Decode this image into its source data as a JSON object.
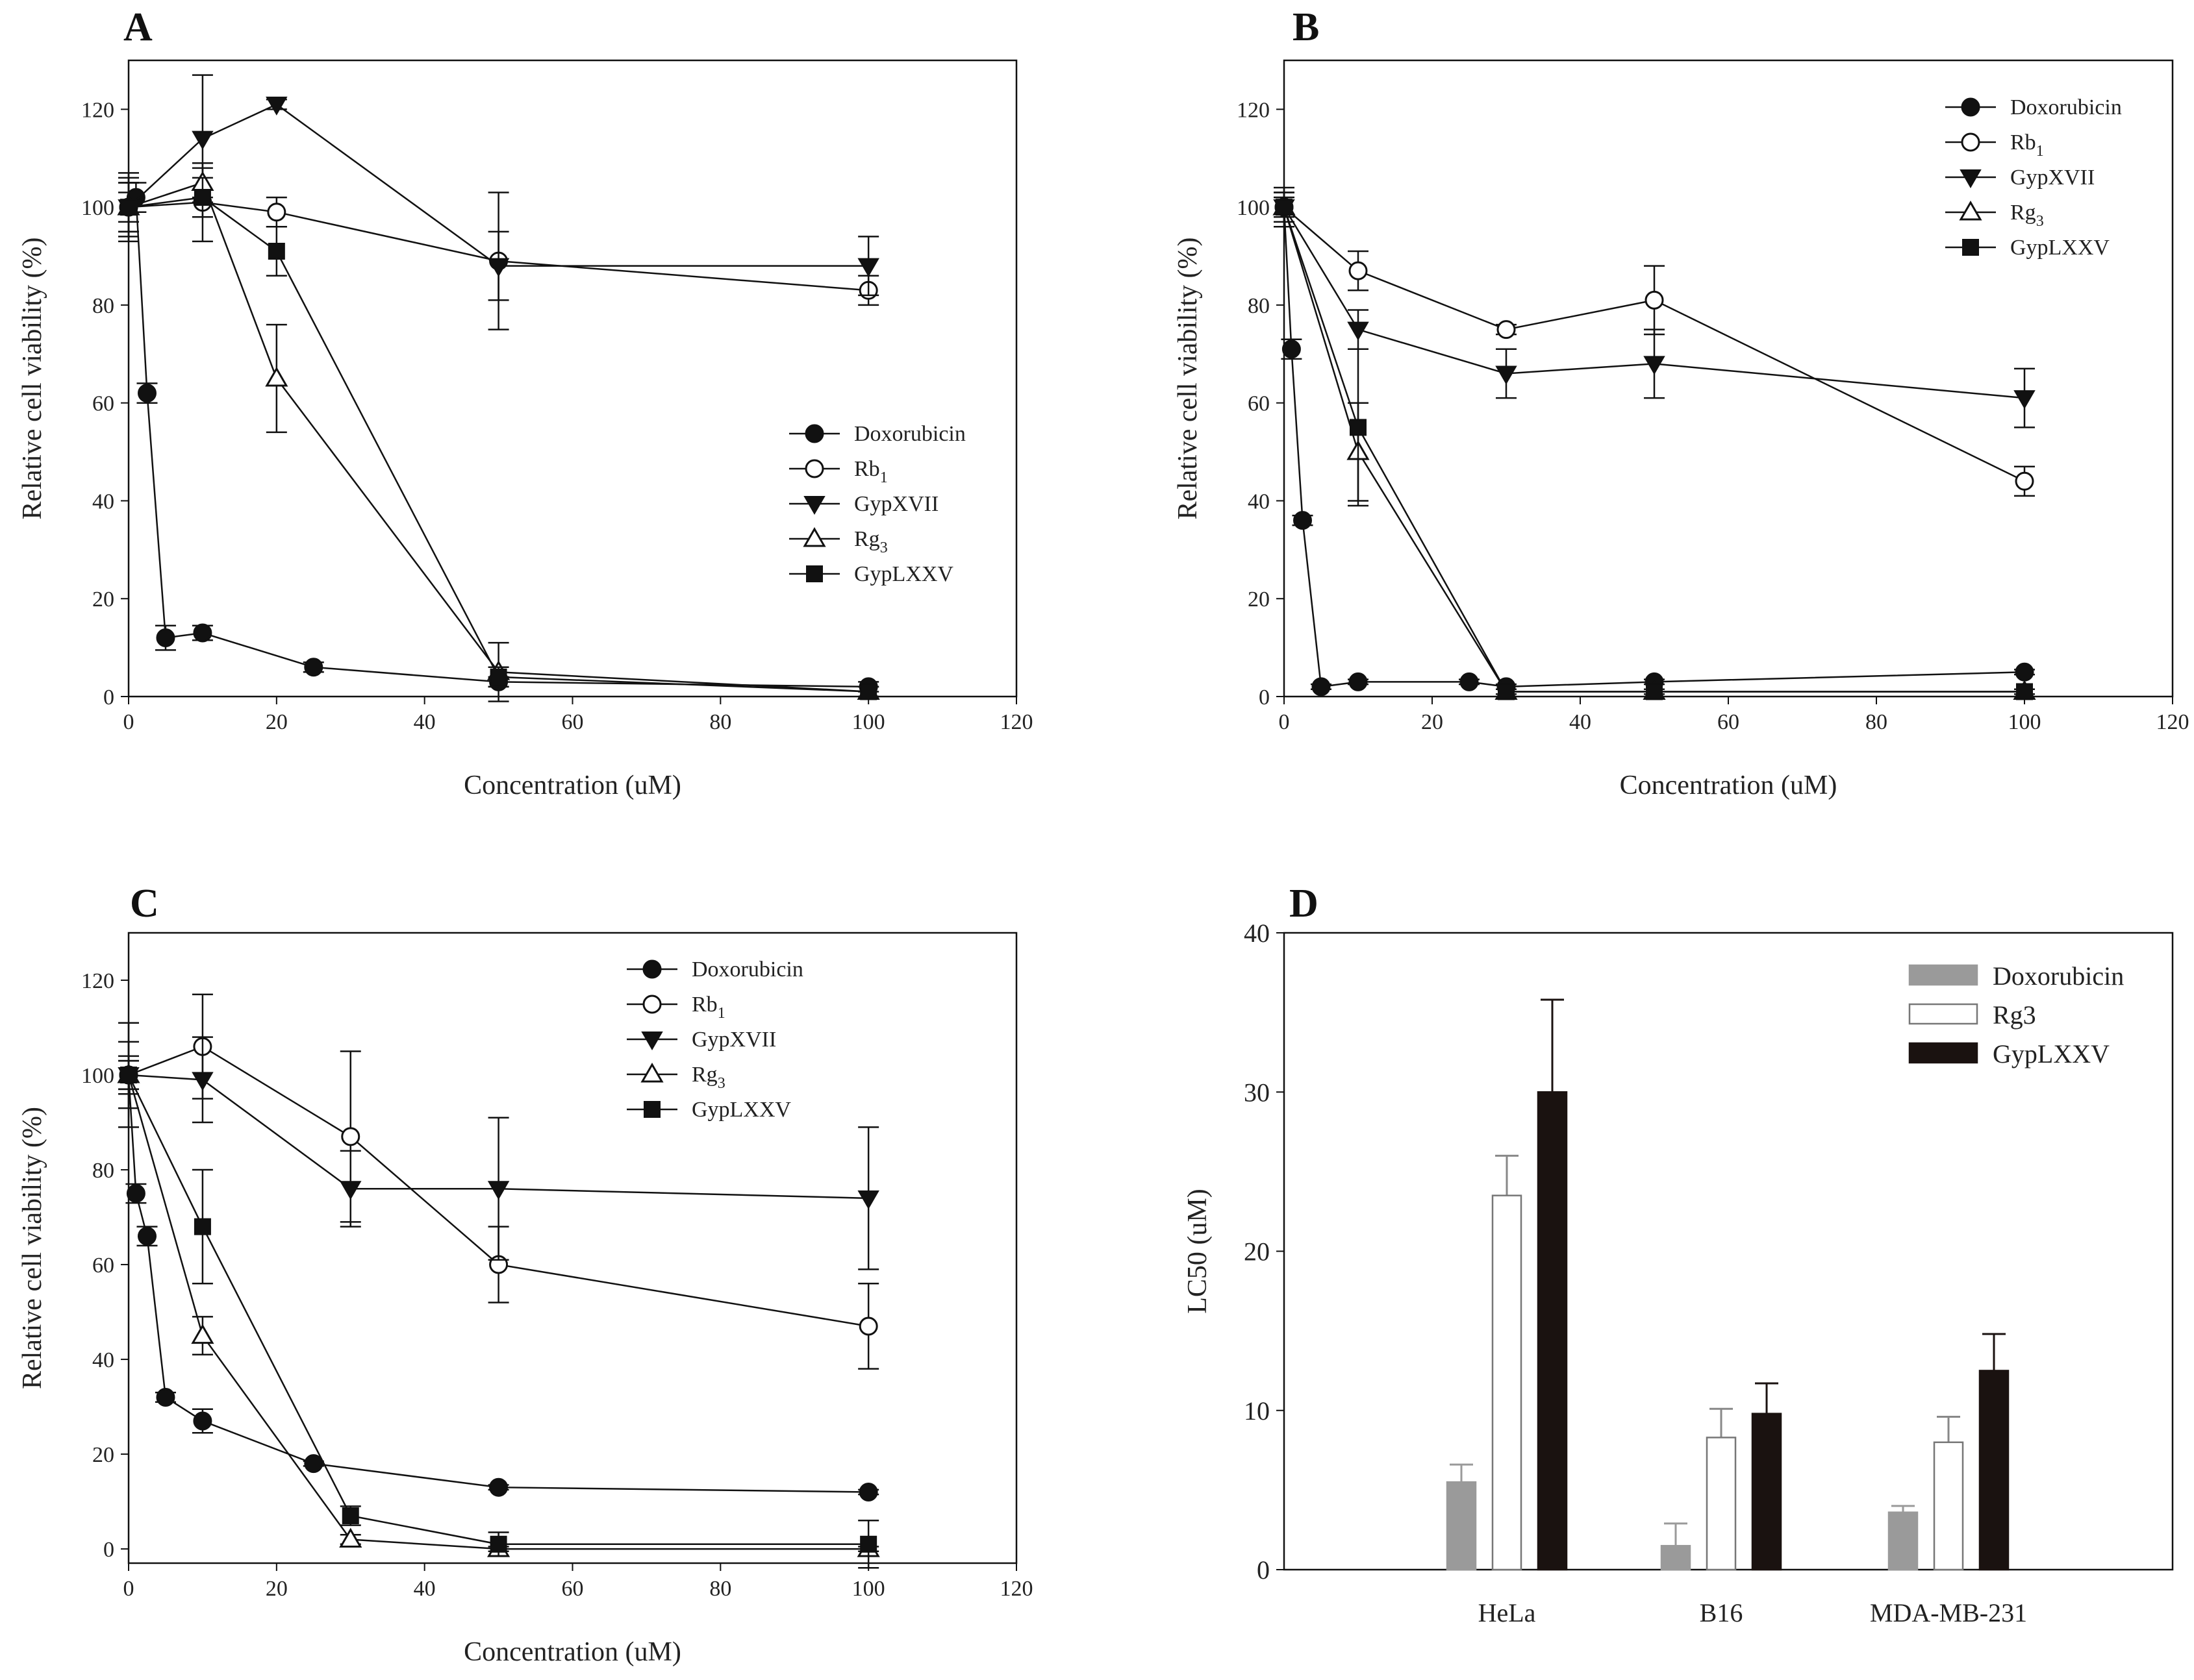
{
  "chart_data": [
    {
      "panel": "A",
      "type": "line",
      "xlabel": "Concentration (uM)",
      "ylabel": "Relative cell viability (%)",
      "xlim": [
        0,
        120
      ],
      "ylim": [
        0,
        130
      ],
      "xticks": [
        0,
        20,
        40,
        60,
        80,
        100,
        120
      ],
      "yticks": [
        0,
        20,
        40,
        60,
        80,
        100,
        120
      ],
      "legend_position": "middle-right",
      "series": [
        {
          "name": "Doxorubicin",
          "label_main": "Doxorubicin",
          "label_sub": "",
          "marker": "circle-filled",
          "x": [
            0,
            1,
            2.5,
            5,
            10,
            25,
            50,
            100
          ],
          "y": [
            100,
            102,
            62,
            12,
            13,
            6,
            3,
            2
          ],
          "err": [
            3,
            3,
            2,
            2.5,
            1.5,
            1,
            1,
            1
          ]
        },
        {
          "name": "Rb1",
          "label_main": "Rb",
          "label_sub": "1",
          "marker": "circle-open",
          "x": [
            0,
            10,
            20,
            50,
            100
          ],
          "y": [
            100,
            101,
            99,
            89,
            83
          ],
          "err": [
            6,
            8,
            3,
            14,
            3
          ]
        },
        {
          "name": "GypXVII",
          "label_main": "GypXVII",
          "label_sub": "",
          "marker": "triangle-down-filled",
          "x": [
            0,
            10,
            20,
            50,
            100
          ],
          "y": [
            100,
            114,
            121,
            88,
            88
          ],
          "err": [
            7,
            13,
            1,
            7,
            6
          ]
        },
        {
          "name": "Rg3",
          "label_main": "Rg",
          "label_sub": "3",
          "marker": "triangle-up-open",
          "x": [
            0,
            10,
            20,
            50,
            100
          ],
          "y": [
            100,
            105,
            65,
            5,
            1
          ],
          "err": [
            5,
            3,
            11,
            6,
            1
          ]
        },
        {
          "name": "GypLXXV",
          "label_main": "GypLXXV",
          "label_sub": "",
          "marker": "square-filled",
          "x": [
            0,
            10,
            20,
            50,
            100
          ],
          "y": [
            100,
            102,
            91,
            4,
            1
          ],
          "err": [
            5,
            4,
            5,
            2,
            1
          ]
        }
      ]
    },
    {
      "panel": "B",
      "type": "line",
      "xlabel": "Concentration (uM)",
      "ylabel": "Relative cell viability (%)",
      "xlim": [
        0,
        120
      ],
      "ylim": [
        0,
        130
      ],
      "xticks": [
        0,
        20,
        40,
        60,
        80,
        100,
        120
      ],
      "yticks": [
        0,
        20,
        40,
        60,
        80,
        100,
        120
      ],
      "legend_position": "top-right",
      "series": [
        {
          "name": "Doxorubicin",
          "label_main": "Doxorubicin",
          "label_sub": "",
          "marker": "circle-filled",
          "x": [
            0,
            1,
            2.5,
            5,
            10,
            25,
            30,
            50,
            100
          ],
          "y": [
            100,
            71,
            36,
            2,
            3,
            3,
            2,
            3,
            5
          ],
          "err": [
            2,
            2,
            1,
            0.5,
            0.5,
            0.5,
            0.5,
            0.5,
            0.5
          ]
        },
        {
          "name": "Rb1",
          "label_main": "Rb",
          "label_sub": "1",
          "marker": "circle-open",
          "x": [
            0,
            10,
            30,
            50,
            100
          ],
          "y": [
            100,
            87,
            75,
            81,
            44
          ],
          "err": [
            4,
            4,
            1,
            7,
            3
          ]
        },
        {
          "name": "GypXVII",
          "label_main": "GypXVII",
          "label_sub": "",
          "marker": "triangle-down-filled",
          "x": [
            0,
            10,
            30,
            50,
            100
          ],
          "y": [
            100,
            75,
            66,
            68,
            61
          ],
          "err": [
            3,
            4,
            5,
            7,
            6
          ]
        },
        {
          "name": "Rg3",
          "label_main": "Rg",
          "label_sub": "3",
          "marker": "triangle-up-open",
          "x": [
            0,
            10,
            30,
            50,
            100
          ],
          "y": [
            100,
            50,
            1,
            1,
            1
          ],
          "err": [
            2,
            10,
            0.5,
            0.5,
            0.5
          ]
        },
        {
          "name": "GypLXXV",
          "label_main": "GypLXXV",
          "label_sub": "",
          "marker": "square-filled",
          "x": [
            0,
            10,
            30,
            50,
            100
          ],
          "y": [
            100,
            55,
            1,
            1,
            1
          ],
          "err": [
            3,
            16,
            0.5,
            0.5,
            0.5
          ]
        }
      ]
    },
    {
      "panel": "C",
      "type": "line",
      "xlabel": "Concentration (uM)",
      "ylabel": "Relative cell viability (%)",
      "xlim": [
        0,
        120
      ],
      "ylim": [
        -3,
        130
      ],
      "xticks": [
        0,
        20,
        40,
        60,
        80,
        100,
        120
      ],
      "yticks": [
        0,
        20,
        40,
        60,
        80,
        100,
        120
      ],
      "legend_position": "top-center",
      "series": [
        {
          "name": "Doxorubicin",
          "label_main": "Doxorubicin",
          "label_sub": "",
          "marker": "circle-filled",
          "x": [
            0,
            1,
            2.5,
            5,
            10,
            25,
            50,
            100
          ],
          "y": [
            100,
            75,
            66,
            32,
            27,
            18,
            13,
            12
          ],
          "err": [
            3,
            2,
            2,
            1,
            2.5,
            0.5,
            0.5,
            0.5
          ]
        },
        {
          "name": "Rb1",
          "label_main": "Rb",
          "label_sub": "1",
          "marker": "circle-open",
          "x": [
            0,
            10,
            30,
            50,
            100
          ],
          "y": [
            100,
            106,
            87,
            60,
            47
          ],
          "err": [
            11,
            11,
            18,
            8,
            9
          ]
        },
        {
          "name": "GypXVII",
          "label_main": "GypXVII",
          "label_sub": "",
          "marker": "triangle-down-filled",
          "x": [
            0,
            10,
            30,
            50,
            100
          ],
          "y": [
            100,
            99,
            76,
            76,
            74
          ],
          "err": [
            7,
            9,
            8,
            15,
            15
          ]
        },
        {
          "name": "Rg3",
          "label_main": "Rg",
          "label_sub": "3",
          "marker": "triangle-up-open",
          "x": [
            0,
            10,
            30,
            50,
            100
          ],
          "y": [
            100,
            45,
            2,
            0,
            0
          ],
          "err": [
            3,
            4,
            1,
            0.5,
            0.5
          ]
        },
        {
          "name": "GypLXXV",
          "label_main": "GypLXXV",
          "label_sub": "",
          "marker": "square-filled",
          "x": [
            0,
            10,
            30,
            50,
            100
          ],
          "y": [
            100,
            68,
            7,
            1,
            1
          ],
          "err": [
            4,
            12,
            2,
            2.5,
            5
          ]
        }
      ]
    },
    {
      "panel": "D",
      "type": "bar",
      "xlabel": "",
      "ylabel": "LC50 (uM)",
      "ylim": [
        0,
        40
      ],
      "yticks": [
        0,
        10,
        20,
        30,
        40
      ],
      "legend_position": "top-right",
      "categories": [
        "HeLa",
        "B16",
        "MDA-MB-231"
      ],
      "series": [
        {
          "name": "Doxorubicin",
          "color": "#9a9a9a",
          "values": [
            5.5,
            1.5,
            3.6
          ],
          "err": [
            1.1,
            1.4,
            0.4
          ]
        },
        {
          "name": "Rg3",
          "color": "#ffffff",
          "values": [
            23.5,
            8.3,
            8.0
          ],
          "err": [
            2.5,
            1.8,
            1.6
          ]
        },
        {
          "name": "GypLXXV",
          "color": "#1a1210",
          "values": [
            30.0,
            9.8,
            12.5
          ],
          "err": [
            5.8,
            1.9,
            2.3
          ]
        }
      ]
    }
  ]
}
